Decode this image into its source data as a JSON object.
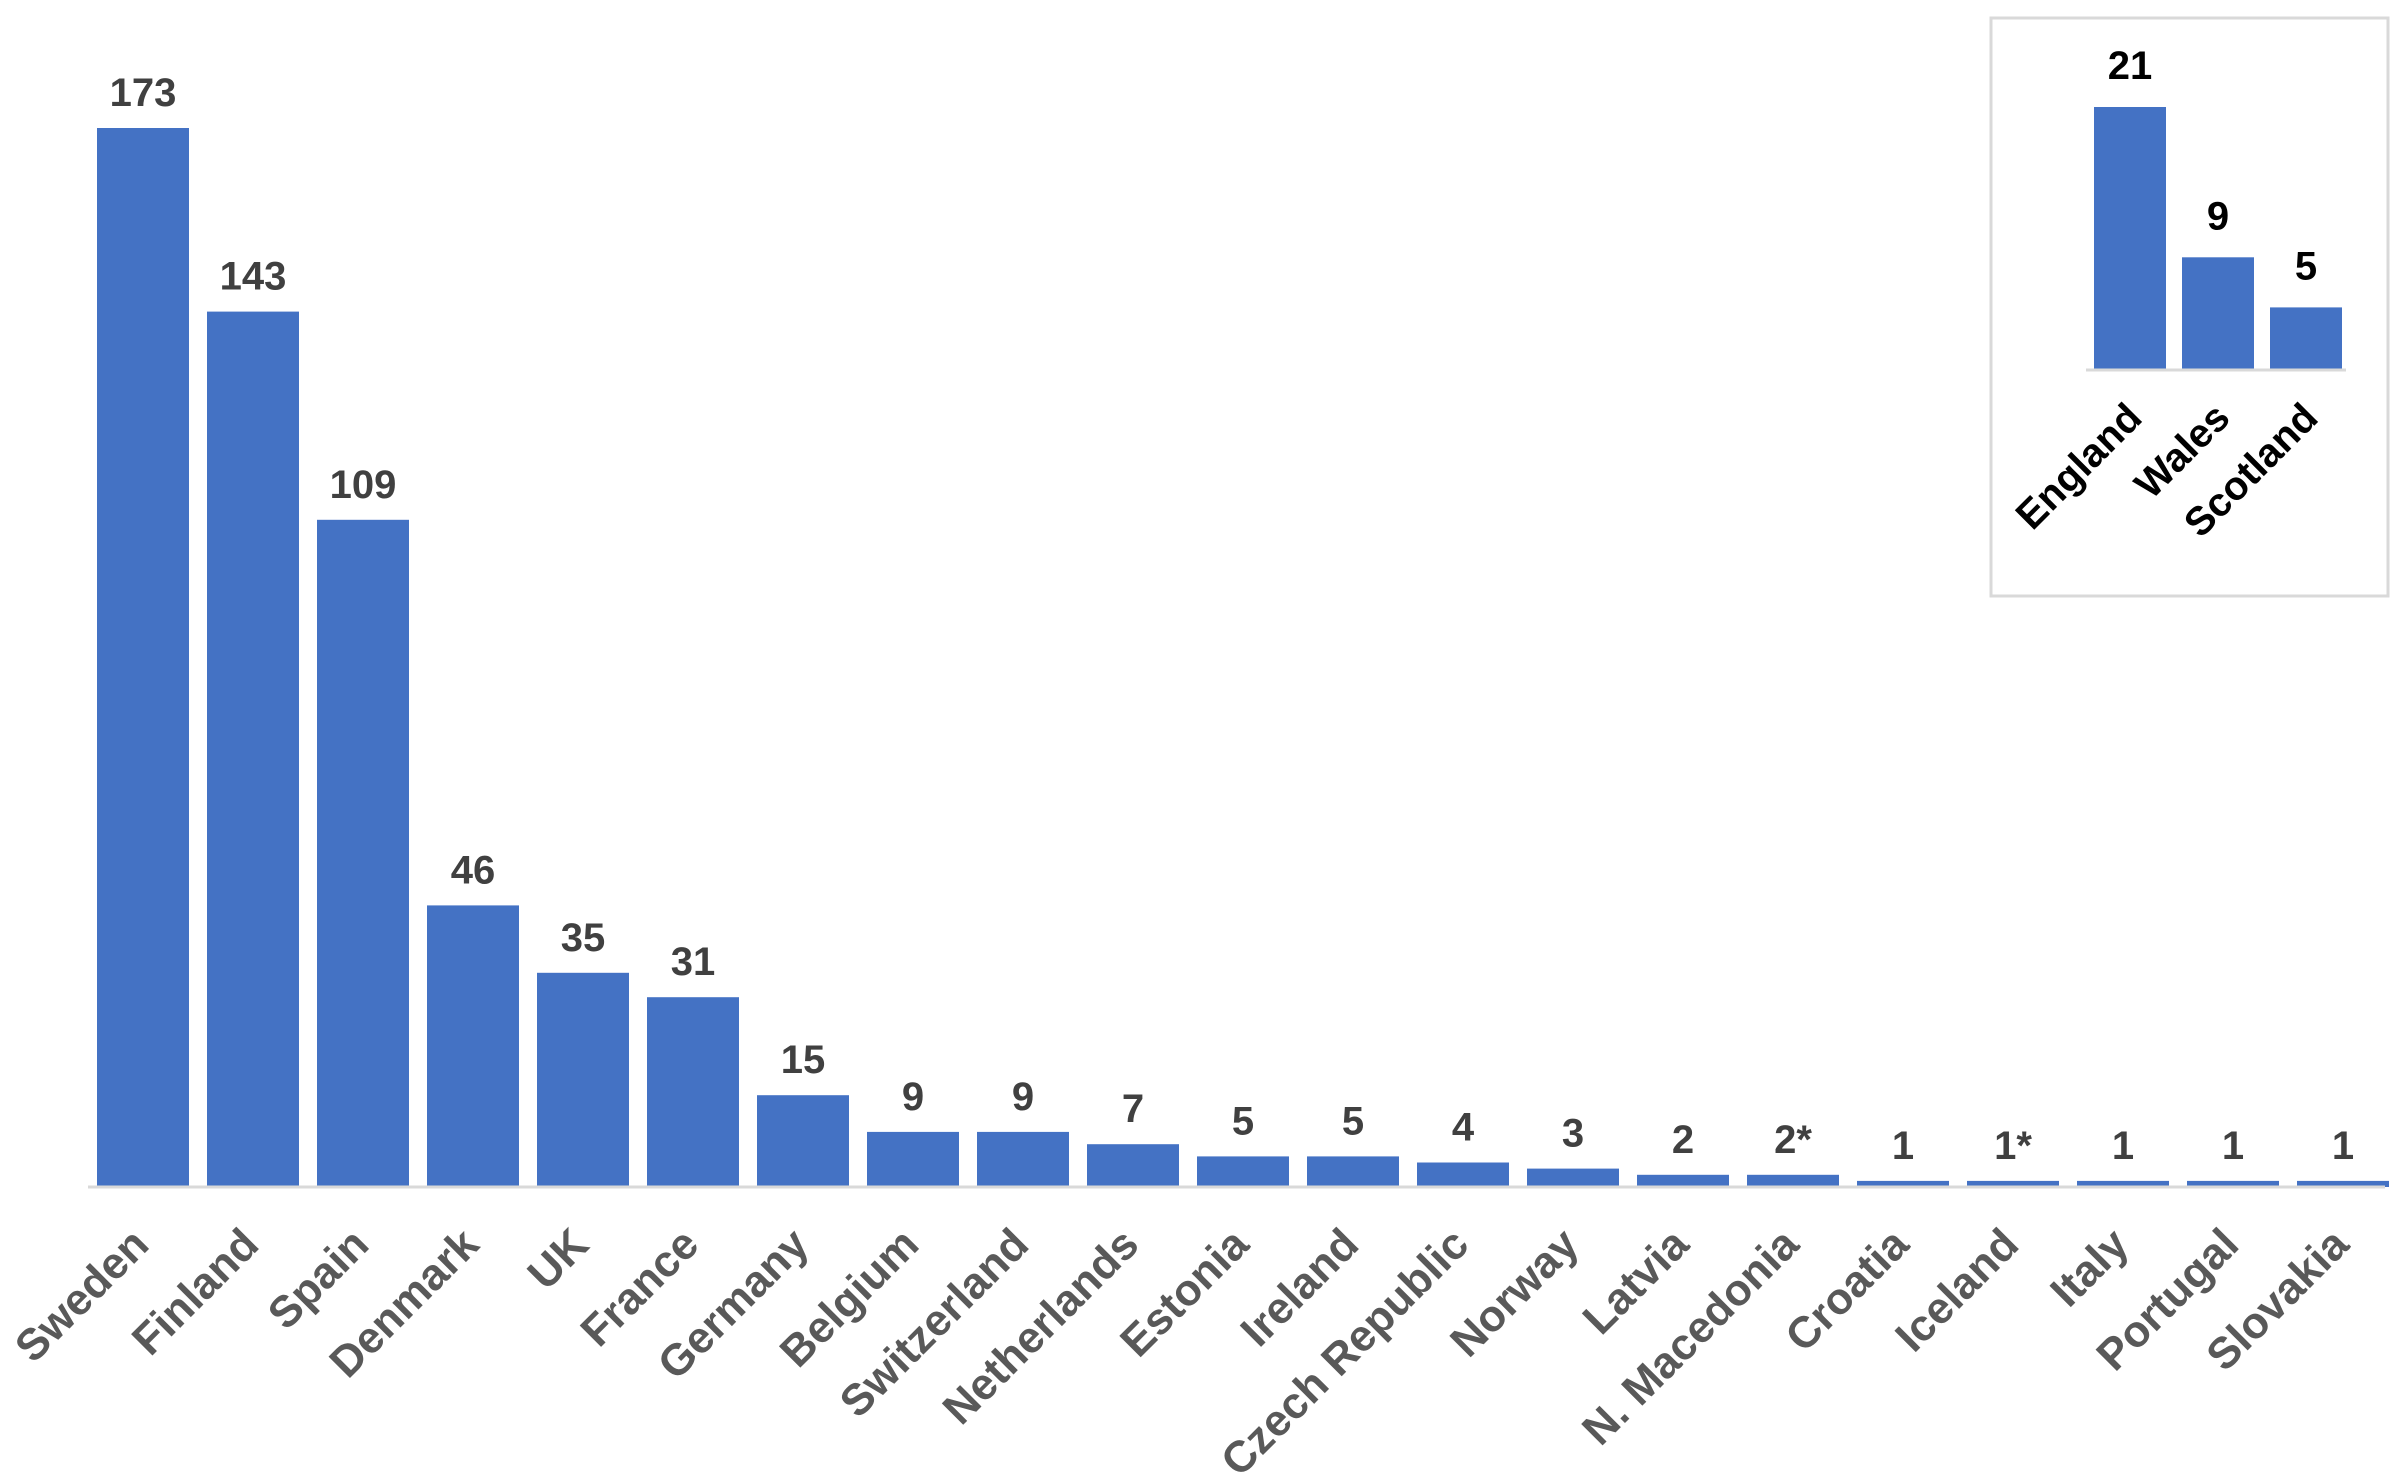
{
  "chart_data": [
    {
      "type": "bar",
      "title": "",
      "xlabel": "",
      "ylabel": "",
      "ylim": [
        0,
        173
      ],
      "grid": false,
      "bar_color": "#4472C4",
      "categories": [
        "Sweden",
        "Finland",
        "Spain",
        "Denmark",
        "UK",
        "France",
        "Germany",
        "Belgium",
        "Switzerland",
        "Netherlands",
        "Estonia",
        "Ireland",
        "Czech Republic",
        "Norway",
        "Latvia",
        "N. Macedonia",
        "Croatia",
        "Iceland",
        "Italy",
        "Portugal",
        "Slovakia"
      ],
      "values": [
        173,
        143,
        109,
        46,
        35,
        31,
        15,
        9,
        9,
        7,
        5,
        5,
        4,
        3,
        2,
        2,
        1,
        1,
        1,
        1,
        1
      ],
      "data_labels": [
        "173",
        "143",
        "109",
        "46",
        "35",
        "31",
        "15",
        "9",
        "9",
        "7",
        "5",
        "5",
        "4",
        "3",
        "2",
        "2*",
        "1",
        "1*",
        "1",
        "1",
        "1"
      ]
    },
    {
      "type": "bar",
      "title": "",
      "xlabel": "",
      "ylabel": "",
      "ylim": [
        0,
        21
      ],
      "grid": false,
      "inset": true,
      "legend": "none",
      "bar_color": "#4472C4",
      "categories": [
        "England",
        "Wales",
        "Scotland"
      ],
      "values": [
        21,
        9,
        5
      ],
      "data_labels": [
        "21",
        "9",
        "5"
      ]
    }
  ]
}
